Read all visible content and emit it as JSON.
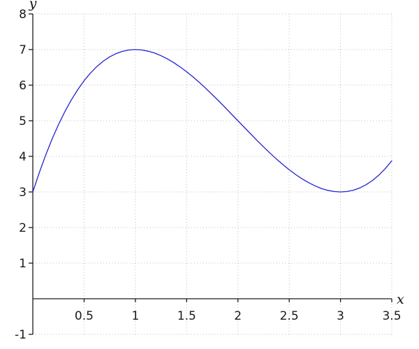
{
  "chart_data": {
    "type": "line",
    "title": "",
    "xlabel": "x",
    "ylabel": "y",
    "xlim": [
      0,
      3.5
    ],
    "ylim": [
      -1,
      8
    ],
    "grid": "dotted",
    "legend": "none",
    "x_ticks": [
      0.5,
      1,
      1.5,
      2,
      2.5,
      3,
      3.5
    ],
    "x_tick_labels": [
      "0.5",
      "1",
      "1.5",
      "2",
      "2.5",
      "3",
      "3.5"
    ],
    "y_ticks": [
      8,
      7,
      6,
      5,
      4,
      3,
      2,
      1,
      -1
    ],
    "y_tick_labels": [
      "8",
      "7",
      "6",
      "5",
      "4",
      "3",
      "2",
      "1",
      "-1"
    ],
    "colors": {
      "curve": "#2222cf",
      "grid": "#b9b9b9",
      "axis": "#1a1a1a",
      "tick_text": "#1a1a1a",
      "background": "#ffffff"
    },
    "key_points": {
      "start": [
        0,
        3
      ],
      "local_max": [
        1,
        7
      ],
      "local_min": [
        3,
        3
      ],
      "end": [
        3.5,
        3.875
      ]
    },
    "series": [
      {
        "name": "curve",
        "color": "#2222cf",
        "x": [
          0,
          0.0625,
          0.125,
          0.1875,
          0.25,
          0.3125,
          0.375,
          0.4375,
          0.5,
          0.5625,
          0.625,
          0.6875,
          0.75,
          0.8125,
          0.875,
          0.9375,
          1,
          1.0625,
          1.125,
          1.1875,
          1.25,
          1.3125,
          1.375,
          1.4375,
          1.5,
          1.5625,
          1.625,
          1.6875,
          1.75,
          1.8125,
          1.875,
          1.9375,
          2,
          2.0625,
          2.125,
          2.1875,
          2.25,
          2.3125,
          2.375,
          2.4375,
          2.5,
          2.5625,
          2.625,
          2.6875,
          2.75,
          2.8125,
          2.875,
          2.9375,
          3,
          3.0625,
          3.125,
          3.1875,
          3.25,
          3.3125,
          3.375,
          3.4375,
          3.5
        ],
        "y": [
          3.0,
          3.539,
          4.033,
          4.483,
          4.891,
          5.257,
          5.584,
          5.873,
          6.125,
          6.342,
          6.525,
          6.677,
          6.797,
          6.888,
          6.951,
          6.988,
          7.0,
          6.989,
          6.955,
          6.901,
          6.828,
          6.738,
          6.631,
          6.51,
          6.375,
          6.229,
          6.072,
          5.907,
          5.734,
          5.556,
          5.373,
          5.187,
          5.0,
          4.813,
          4.627,
          4.444,
          4.266,
          4.093,
          3.928,
          3.771,
          3.625,
          3.49,
          3.369,
          3.262,
          3.172,
          3.099,
          3.045,
          3.011,
          3.0,
          3.012,
          3.049,
          3.112,
          3.203,
          3.323,
          3.475,
          3.658,
          3.875
        ]
      }
    ]
  }
}
